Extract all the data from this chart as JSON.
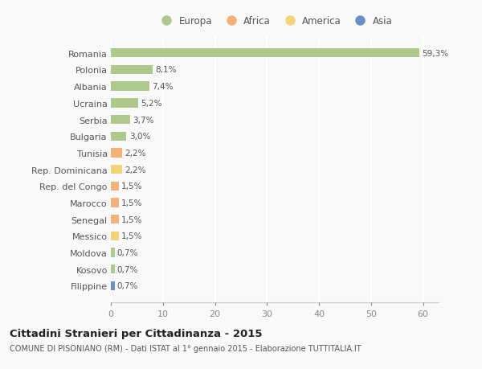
{
  "countries": [
    "Romania",
    "Polonia",
    "Albania",
    "Ucraina",
    "Serbia",
    "Bulgaria",
    "Tunisia",
    "Rep. Dominicana",
    "Rep. del Congo",
    "Marocco",
    "Senegal",
    "Messico",
    "Moldova",
    "Kosovo",
    "Filippine"
  ],
  "values": [
    59.3,
    8.1,
    7.4,
    5.2,
    3.7,
    3.0,
    2.2,
    2.2,
    1.5,
    1.5,
    1.5,
    1.5,
    0.7,
    0.7,
    0.7
  ],
  "labels": [
    "59,3%",
    "8,1%",
    "7,4%",
    "5,2%",
    "3,7%",
    "3,0%",
    "2,2%",
    "2,2%",
    "1,5%",
    "1,5%",
    "1,5%",
    "1,5%",
    "0,7%",
    "0,7%",
    "0,7%"
  ],
  "continents": [
    "Europa",
    "Europa",
    "Europa",
    "Europa",
    "Europa",
    "Europa",
    "Africa",
    "America",
    "Africa",
    "Africa",
    "Africa",
    "America",
    "Europa",
    "Europa",
    "Asia"
  ],
  "colors": {
    "Europa": "#aec98c",
    "Africa": "#f2b27a",
    "America": "#f2d47a",
    "Asia": "#6b8fc4"
  },
  "legend_order": [
    "Europa",
    "Africa",
    "America",
    "Asia"
  ],
  "xlim": [
    0,
    63
  ],
  "xticks": [
    0,
    10,
    20,
    30,
    40,
    50,
    60
  ],
  "title": "Cittadini Stranieri per Cittadinanza - 2015",
  "subtitle": "COMUNE DI PISONIANO (RM) - Dati ISTAT al 1° gennaio 2015 - Elaborazione TUTTITALIA.IT",
  "bg_color": "#f9f9f9",
  "plot_bg_color": "#f9f9f9",
  "grid_color": "#ffffff",
  "bar_alpha": 1.0,
  "label_color": "#555555",
  "tick_color": "#888888"
}
